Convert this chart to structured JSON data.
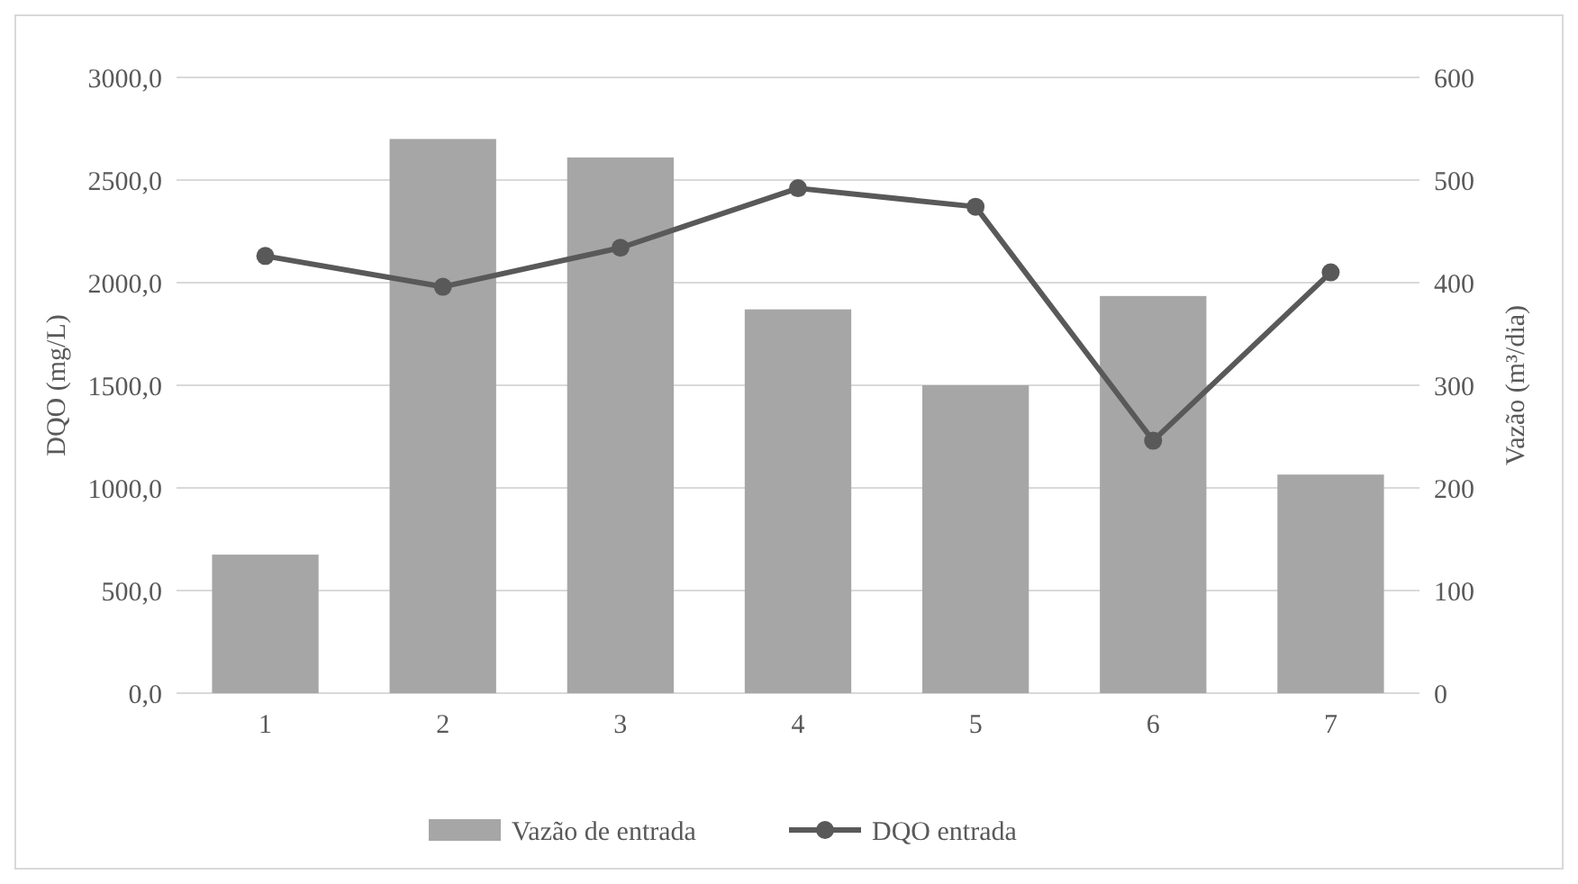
{
  "chart_data": {
    "type": "bar",
    "ylabel": "DQO (mg/L)",
    "y2label": "Vazão (m³/dia)",
    "categories": [
      "1",
      "2",
      "3",
      "4",
      "5",
      "6",
      "7"
    ],
    "series": [
      {
        "name": "Vazão de entrada",
        "axis": "y2",
        "color": "#a6a6a6",
        "values": [
          135,
          540,
          522,
          374,
          300,
          387,
          213
        ]
      },
      {
        "name": "DQO entrada",
        "type": "line",
        "axis": "y",
        "color": "#595959",
        "marker": "circle",
        "values": [
          2130,
          1980,
          2170,
          2460,
          2370,
          1230,
          2050
        ]
      }
    ],
    "ylim": [
      0,
      3000
    ],
    "yticks": [
      {
        "value": 0,
        "label": "0,0"
      },
      {
        "value": 500,
        "label": "500,0"
      },
      {
        "value": 1000,
        "label": "1000,0"
      },
      {
        "value": 1500,
        "label": "1500,0"
      },
      {
        "value": 2000,
        "label": "2000,0"
      },
      {
        "value": 2500,
        "label": "2500,0"
      },
      {
        "value": 3000,
        "label": "3000,0"
      }
    ],
    "y2lim": [
      0,
      600
    ],
    "y2ticks": [
      0,
      100,
      200,
      300,
      400,
      500,
      600
    ],
    "grid": "y",
    "legend": "bottom"
  }
}
